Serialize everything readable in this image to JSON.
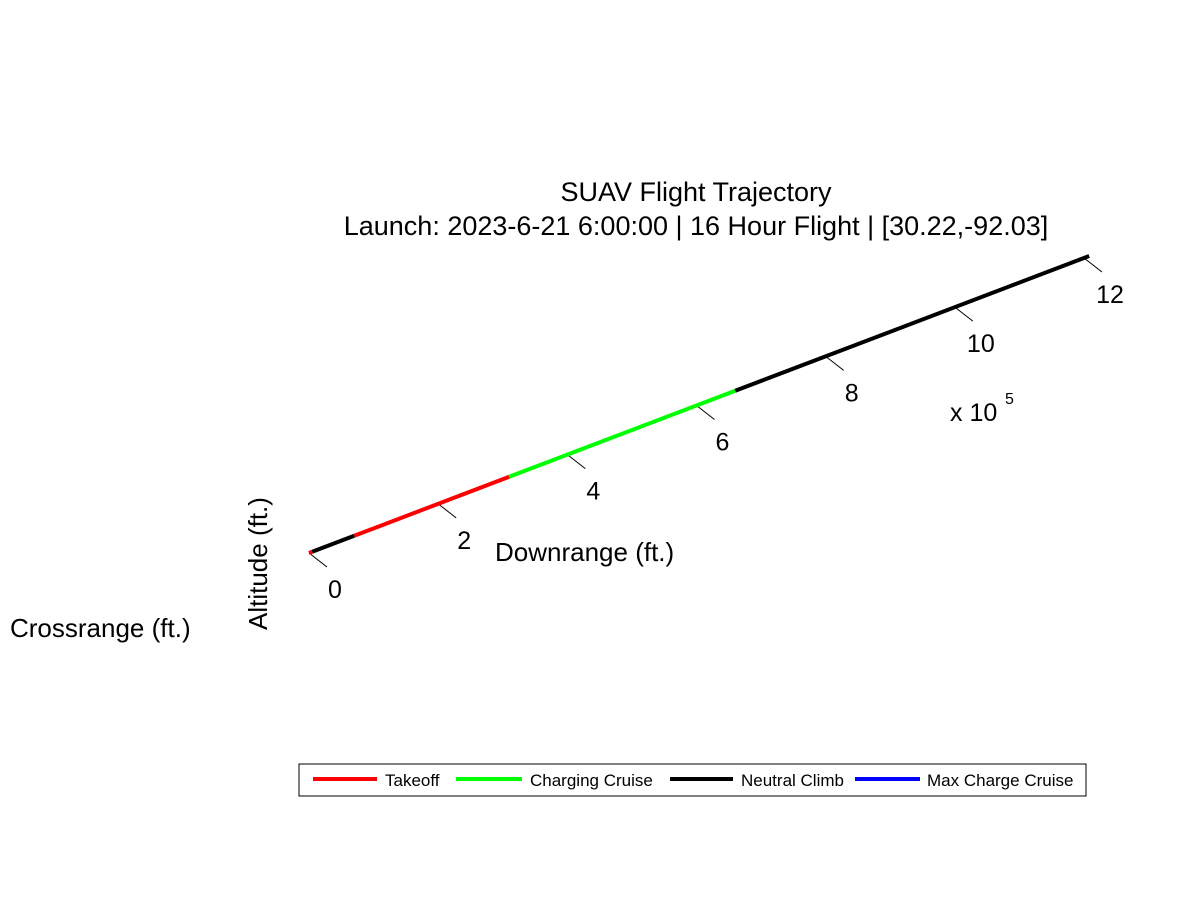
{
  "chart_data": {
    "type": "line",
    "title": "SUAV Flight Trajectory",
    "subtitle": "Launch: 2023-6-21 6:00:00 | 16 Hour Flight | [30.22,-92.03]",
    "xlabel": "Downrange (ft.)",
    "ylabel": "Crossrange (ft.)",
    "zlabel": "Altitude (ft.)",
    "x_ticks": [
      "0",
      "2",
      "4",
      "6",
      "8",
      "10",
      "12"
    ],
    "x_tick_values": [
      0,
      2,
      4,
      6,
      8,
      10,
      12
    ],
    "x_multiplier": "x 10",
    "x_multiplier_exponent": "5",
    "xlim": [
      0,
      12
    ],
    "grid": false,
    "legend_position": "bottom",
    "series": [
      {
        "name": "Takeoff",
        "color": "#ff0000",
        "segments": [
          [
            0,
            0.05
          ],
          [
            0.7,
            3.1
          ]
        ]
      },
      {
        "name": "Charging Cruise",
        "color": "#00ff00",
        "segments": [
          [
            3.1,
            6.6
          ]
        ]
      },
      {
        "name": "Neutral Climb",
        "color": "#000000",
        "segments": [
          [
            0.05,
            0.7
          ],
          [
            6.6,
            12.08
          ]
        ]
      },
      {
        "name": "Max Charge Cruise",
        "color": "#0000ff",
        "segments": []
      }
    ]
  }
}
